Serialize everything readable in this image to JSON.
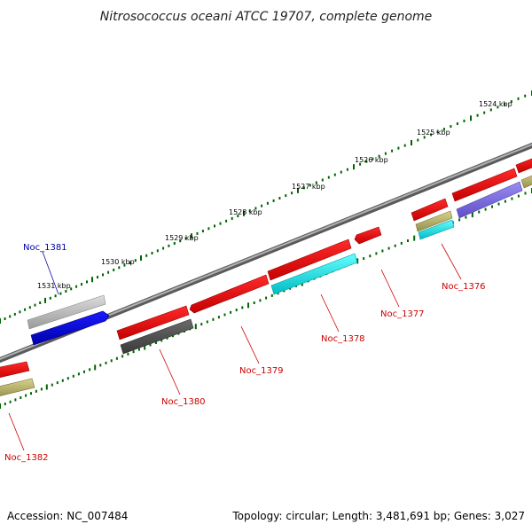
{
  "title": "Nitrosococcus oceani ATCC 19707, complete genome",
  "ticks": [
    "1524 kbp",
    "1525 kbp",
    "1526 kbp",
    "1527 kbp",
    "1528 kbp",
    "1529 kbp",
    "1530 kbp",
    "1531 kbp"
  ],
  "genes": [
    {
      "label": "Noc_1381",
      "color": "#0000cc"
    },
    {
      "label": "Noc_1380",
      "color": "#cc0000"
    },
    {
      "label": "Noc_1379",
      "color": "#cc0000"
    },
    {
      "label": "Noc_1378",
      "color": "#cc0000"
    },
    {
      "label": "Noc_1377",
      "color": "#cc0000"
    },
    {
      "label": "Noc_1376",
      "color": "#cc0000"
    },
    {
      "label": "Noc_1382",
      "color": "#cc0000"
    }
  ],
  "footer": {
    "accession": "Accession: NC_007484",
    "summary": "Topology: circular; Length: 3,481,691 bp; Genes: 3,027"
  },
  "colors": {
    "backbone": "#7a7a7a",
    "cds_forward": "#ff0000",
    "cds_reverse": "#ff0000",
    "gray_gene": "#bfbfbf",
    "dark_gene": "#555555",
    "blue_gene": "#0000ee",
    "cyan_gene": "#00e5ee",
    "olive_gene": "#bdb76b",
    "purple_gene": "#7b68ee",
    "tick_major": "#006400"
  }
}
